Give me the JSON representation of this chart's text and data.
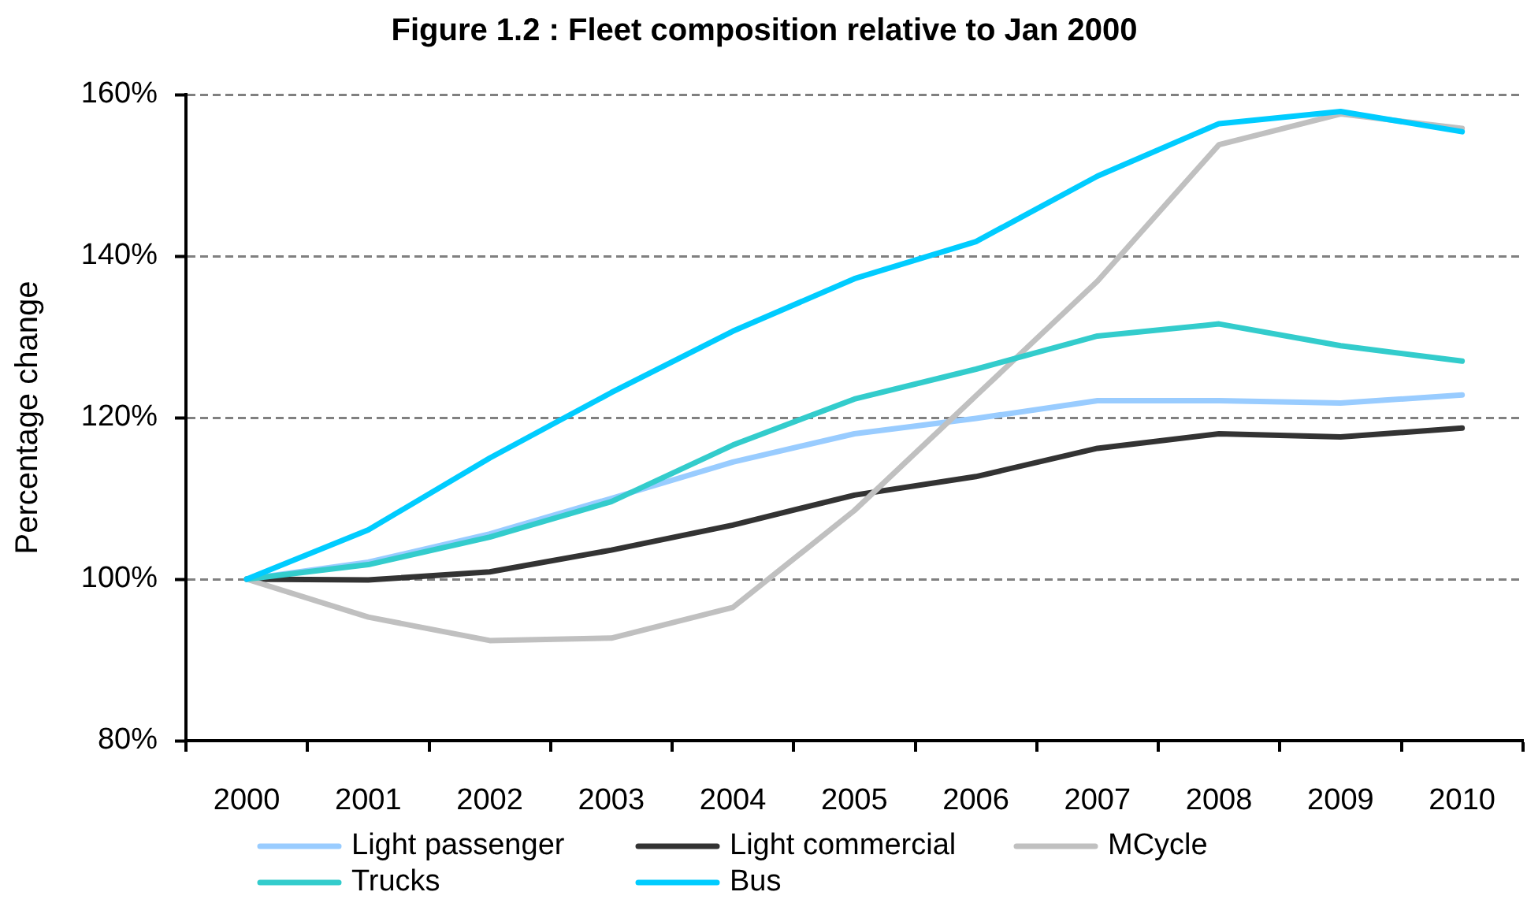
{
  "chart_data": {
    "type": "line",
    "title": "Figure 1.2 : Fleet composition relative to Jan 2000",
    "ylabel": "Percentage change",
    "categories": [
      "2000",
      "2001",
      "2002",
      "2003",
      "2004",
      "2005",
      "2006",
      "2007",
      "2008",
      "2009",
      "2010"
    ],
    "series": [
      {
        "name": "Light passenger",
        "color": "#99ccff",
        "values": [
          100,
          102.1,
          105.6,
          110.0,
          114.5,
          118.0,
          119.9,
          122.1,
          122.1,
          121.8,
          122.8
        ]
      },
      {
        "name": "Light commercial",
        "color": "#333333",
        "values": [
          100,
          99.9,
          100.9,
          103.6,
          106.7,
          110.4,
          112.7,
          116.2,
          118.0,
          117.6,
          118.7
        ]
      },
      {
        "name": "MCycle",
        "color": "#c0c0c0",
        "values": [
          100,
          95.3,
          92.4,
          92.7,
          96.5,
          108.5,
          122.7,
          136.9,
          153.8,
          157.6,
          155.8
        ]
      },
      {
        "name": "Trucks",
        "color": "#33cccc",
        "values": [
          100,
          101.8,
          105.2,
          109.6,
          116.6,
          122.3,
          126.0,
          130.1,
          131.6,
          128.9,
          127.0
        ]
      },
      {
        "name": "Bus",
        "color": "#00ccff",
        "values": [
          100,
          106.1,
          115.0,
          123.1,
          130.7,
          137.2,
          141.8,
          149.9,
          156.4,
          157.9,
          155.4
        ]
      }
    ],
    "ylim": [
      80,
      160
    ],
    "yticks": [
      {
        "value": 80,
        "label": "80%"
      },
      {
        "value": 100,
        "label": "100%"
      },
      {
        "value": 120,
        "label": "120%"
      },
      {
        "value": 140,
        "label": "140%"
      },
      {
        "value": 160,
        "label": "160%"
      }
    ],
    "grid": "y",
    "legend": "bottom",
    "line_style": "solid"
  }
}
